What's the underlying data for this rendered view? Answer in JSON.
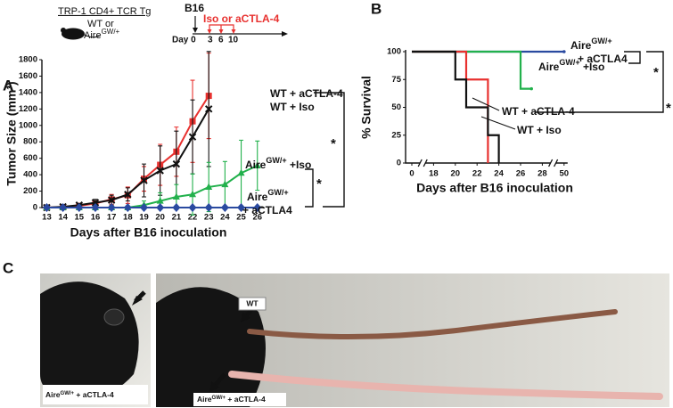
{
  "panels": [
    "A",
    "B",
    "C"
  ],
  "header": {
    "strain": "TRP-1 CD4+ TCR Tg",
    "genotype": [
      "WT or",
      "Aire",
      "GW/+"
    ],
    "tumor": "B16",
    "treatment": "Iso or aCTLA-4",
    "day0": "Day 0",
    "days": [
      "3",
      "6",
      "10"
    ]
  },
  "photos": {
    "left_label": [
      "Aire",
      "GW/+",
      " + aCTLA-4"
    ],
    "right_top_label": "WT",
    "right_bottom_label": [
      "Aire",
      "GW/+",
      " + aCTLA-4"
    ]
  },
  "chart_data": [
    {
      "type": "line",
      "ylabel": "Tumor Size (mm³)",
      "xlabel": "Days after B16 inoculation",
      "x": [
        13,
        14,
        15,
        16,
        17,
        18,
        19,
        20,
        21,
        22,
        23,
        24,
        25,
        26
      ],
      "xlim": [
        12.7,
        26.4
      ],
      "xticks": [
        13,
        14,
        15,
        16,
        17,
        18,
        19,
        20,
        21,
        22,
        23,
        24,
        25,
        26
      ],
      "ylim": [
        0,
        1800
      ],
      "yticks": [
        0,
        200,
        400,
        600,
        800,
        1000,
        1200,
        1400,
        1600,
        1800
      ],
      "series": [
        {
          "label": [
            "WT + aCTLA-4"
          ],
          "color": "#e8312f",
          "marker": "square",
          "values": [
            0,
            5,
            20,
            50,
            100,
            150,
            350,
            520,
            680,
            1050,
            1360,
            null,
            null,
            null
          ],
          "errors": [
            0,
            5,
            10,
            30,
            60,
            100,
            150,
            250,
            300,
            500,
            520,
            null,
            null,
            null
          ]
        },
        {
          "label": [
            "WT + Iso"
          ],
          "color": "#111111",
          "marker": "x",
          "values": [
            0,
            10,
            30,
            60,
            90,
            160,
            330,
            450,
            530,
            860,
            1200,
            null,
            null,
            null
          ],
          "errors": [
            0,
            10,
            20,
            40,
            60,
            80,
            200,
            300,
            400,
            450,
            700,
            null,
            null,
            null
          ]
        },
        {
          "label": [
            "Aire",
            "GW/+",
            " +Iso"
          ],
          "color": "#22b14c",
          "marker": "triangle",
          "values": [
            0,
            0,
            0,
            0,
            0,
            0,
            30,
            80,
            130,
            160,
            250,
            280,
            420,
            510
          ],
          "errors": [
            0,
            0,
            0,
            0,
            0,
            0,
            50,
            100,
            150,
            250,
            300,
            280,
            400,
            300
          ]
        },
        {
          "label": [
            "Aire",
            "GW/+",
            "+ aCTLA4"
          ],
          "color": "#2a4aa0",
          "marker": "diamond",
          "values": [
            0,
            0,
            0,
            0,
            0,
            0,
            0,
            0,
            0,
            0,
            0,
            0,
            0,
            0
          ]
        }
      ],
      "annotations": [
        "*",
        "*"
      ]
    },
    {
      "type": "step",
      "ylabel": "% Survival",
      "xlabel": "Days after B16 inoculation",
      "xticks": [
        0,
        18,
        20,
        22,
        24,
        26,
        28,
        50
      ],
      "ylim": [
        0,
        100
      ],
      "yticks": [
        0,
        25,
        50,
        75,
        100
      ],
      "series": [
        {
          "label": [
            "Aire",
            "GW/+",
            "+ aCTLA4"
          ],
          "color": "#2a4aa0",
          "x": [
            0,
            50
          ],
          "values": [
            100,
            100
          ]
        },
        {
          "label": [
            "Aire",
            "GW/+",
            " +Iso"
          ],
          "color": "#22b14c",
          "x": [
            0,
            26,
            27
          ],
          "values": [
            100,
            66.7,
            66.7
          ]
        },
        {
          "label": [
            "WT + aCTLA-4"
          ],
          "color": "#e8312f",
          "x": [
            0,
            21,
            23
          ],
          "values": [
            100,
            75,
            0
          ]
        },
        {
          "label": [
            "WT + Iso"
          ],
          "color": "#111111",
          "x": [
            0,
            20,
            21,
            23,
            24
          ],
          "values": [
            100,
            75,
            50,
            25,
            0
          ]
        }
      ],
      "annotations": [
        "*",
        "*"
      ]
    }
  ]
}
